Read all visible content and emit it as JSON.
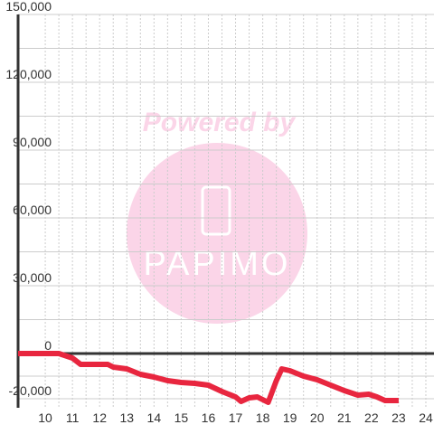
{
  "chart_data": {
    "type": "line",
    "x": [
      9,
      10.5,
      11,
      11.3,
      12.3,
      12.5,
      13,
      13.5,
      14,
      14.5,
      15,
      15.5,
      16,
      16.5,
      17,
      17.2,
      17.5,
      17.8,
      18.2,
      18.5,
      18.7,
      19,
      19.5,
      20,
      20.5,
      21,
      21.5,
      21.9,
      22.2,
      22.5,
      23
    ],
    "values": [
      0,
      0,
      -2000,
      -4800,
      -4800,
      -6000,
      -6800,
      -9200,
      -10400,
      -12000,
      -12800,
      -13200,
      -14000,
      -16800,
      -19200,
      -21200,
      -19600,
      -19200,
      -21600,
      -12000,
      -6800,
      -7600,
      -10000,
      -11600,
      -14000,
      -16400,
      -18400,
      -18000,
      -19200,
      -20800,
      -20800
    ],
    "color": "#e8263f",
    "xlim": [
      9,
      24.3
    ],
    "xticks": [
      10,
      11,
      12,
      13,
      14,
      15,
      16,
      17,
      18,
      19,
      20,
      21,
      22,
      23,
      24
    ],
    "ylim": [
      -24000,
      150000
    ],
    "yticks": [
      {
        "value": 150000,
        "label": "150,000"
      },
      {
        "value": 120000,
        "label": "120,000"
      },
      {
        "value": 90000,
        "label": "90,000"
      },
      {
        "value": 60000,
        "label": "60,000"
      },
      {
        "value": 30000,
        "label": "30,000"
      },
      0,
      {
        "value": -20000,
        "label": "-20,000"
      }
    ],
    "grid": true,
    "watermark": {
      "line1": "Powered by",
      "line2": "PAPIMO"
    }
  }
}
